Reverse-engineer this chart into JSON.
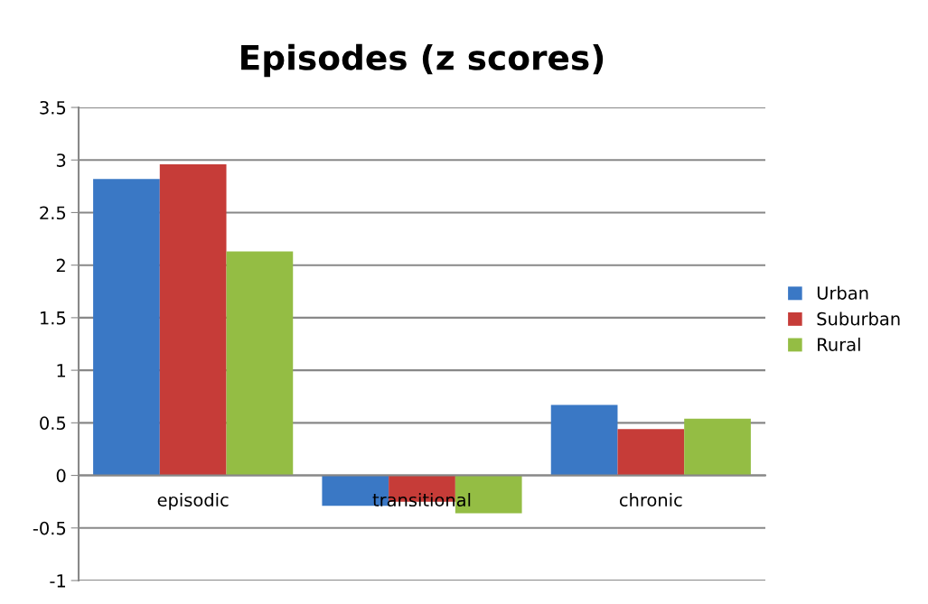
{
  "chart_data": {
    "type": "bar",
    "title": "Episodes (z scores)",
    "categories": [
      "episodic",
      "transitional",
      "chronic"
    ],
    "series": [
      {
        "name": "Urban",
        "color": "#3a78c5",
        "values": [
          2.82,
          -0.29,
          0.67
        ]
      },
      {
        "name": "Suburban",
        "color": "#c63c38",
        "values": [
          2.96,
          -0.25,
          0.44
        ]
      },
      {
        "name": "Rural",
        "color": "#94bd44",
        "values": [
          2.13,
          -0.36,
          0.54
        ]
      }
    ],
    "ylim": [
      -1,
      3.5
    ],
    "yticks": [
      -1,
      -0.5,
      0,
      0.5,
      1,
      1.5,
      2,
      2.5,
      3,
      3.5
    ],
    "grid": "y",
    "legend": "right"
  }
}
